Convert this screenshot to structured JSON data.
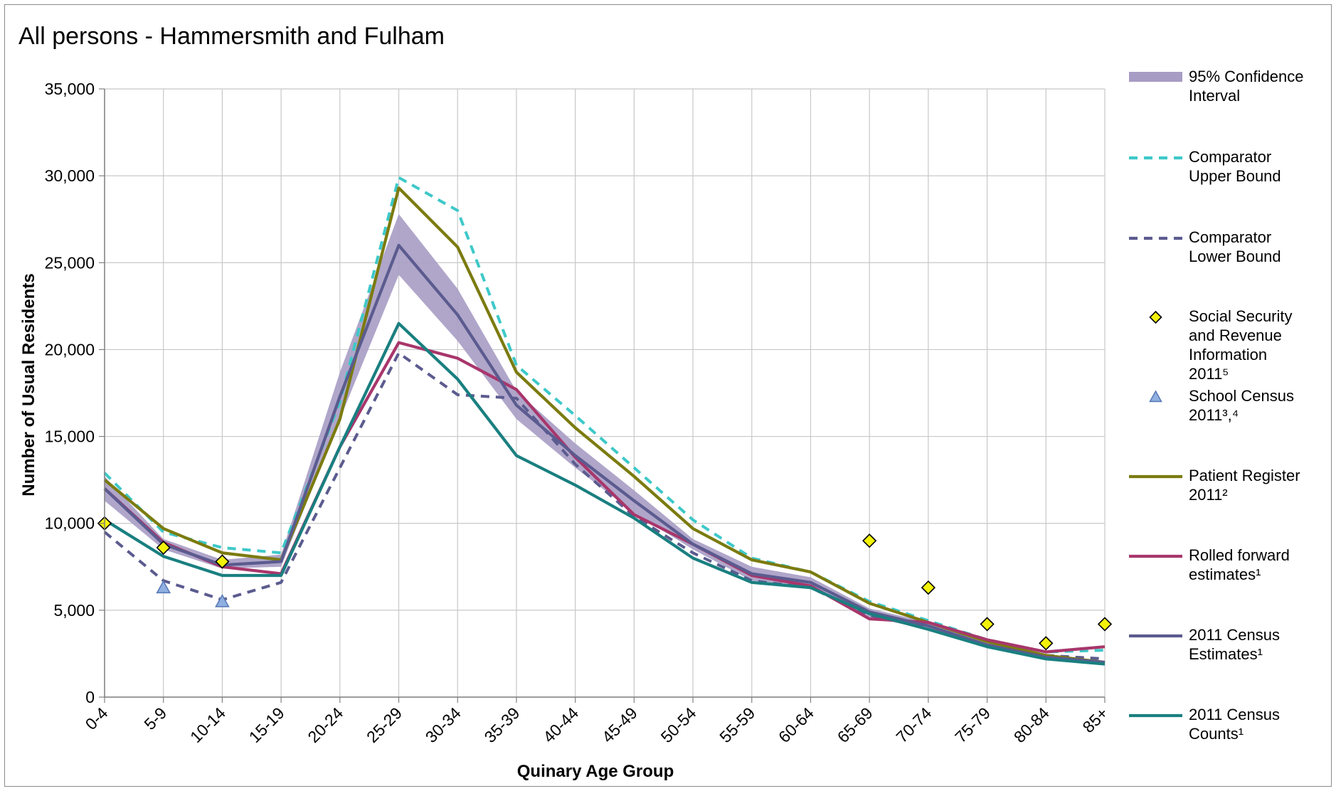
{
  "chart_data": {
    "type": "line",
    "title": "All persons - Hammersmith and Fulham",
    "xlabel": "Quinary Age Group",
    "ylabel": "Number of Usual Residents",
    "ylim": [
      0,
      35000
    ],
    "yticks": [
      0,
      5000,
      10000,
      15000,
      20000,
      25000,
      30000,
      35000
    ],
    "ytick_labels": [
      "0",
      "5,000",
      "10,000",
      "15,000",
      "20,000",
      "25,000",
      "30,000",
      "35,000"
    ],
    "grid": true,
    "legend_position": "right",
    "categories": [
      "0-4",
      "5-9",
      "10-14",
      "15-19",
      "20-24",
      "25-29",
      "30-34",
      "35-39",
      "40-44",
      "45-49",
      "50-54",
      "55-59",
      "60-64",
      "65-69",
      "70-74",
      "75-79",
      "80-84",
      "85+"
    ],
    "confidence_interval": {
      "name": "95% Confidence Interval",
      "color": "#a79cc4",
      "lower": [
        11300,
        8500,
        7400,
        7500,
        16000,
        24300,
        20500,
        16000,
        13200,
        10600,
        8500,
        6700,
        6300,
        4600,
        3900,
        2900,
        2200,
        1850
      ],
      "upper": [
        12700,
        9100,
        7900,
        8200,
        18700,
        27800,
        23500,
        17600,
        14600,
        11900,
        9100,
        7500,
        6900,
        5100,
        4300,
        3200,
        2400,
        2100
      ]
    },
    "series": [
      {
        "name": "Comparator Upper Bound",
        "style": "dashed",
        "color": "#3ec8c8",
        "values": [
          12900,
          9500,
          8600,
          8300,
          17000,
          29900,
          28000,
          19100,
          16200,
          13200,
          10200,
          8000,
          7200,
          5500,
          4400,
          3300,
          2600,
          2700
        ]
      },
      {
        "name": "Comparator Lower Bound",
        "style": "dashed",
        "color": "#5b5b8f",
        "values": [
          9500,
          6700,
          5600,
          6600,
          13200,
          19800,
          17400,
          17200,
          13400,
          10400,
          8300,
          6700,
          6300,
          4700,
          4100,
          3000,
          2400,
          2200
        ]
      },
      {
        "name": "Patient Register 2011²",
        "style": "solid",
        "color": "#7b7b10",
        "values": [
          12500,
          9700,
          8300,
          7900,
          16000,
          29300,
          25900,
          18700,
          15500,
          12700,
          9700,
          7900,
          7200,
          5400,
          4300,
          3200,
          2400,
          2000
        ]
      },
      {
        "name": "Rolled forward estimates¹",
        "style": "solid",
        "color": "#a8366b",
        "values": [
          12000,
          8900,
          7500,
          7100,
          14400,
          20400,
          19500,
          17700,
          13800,
          10500,
          8800,
          7000,
          6400,
          4500,
          4300,
          3300,
          2600,
          2900
        ]
      },
      {
        "name": "2011 Census Estimates¹",
        "style": "solid",
        "color": "#5b5b8f",
        "values": [
          12000,
          8800,
          7600,
          7800,
          17300,
          26000,
          22000,
          16800,
          13900,
          11300,
          8800,
          7100,
          6600,
          4900,
          4100,
          3000,
          2300,
          2000
        ]
      },
      {
        "name": "2011 Census Counts¹",
        "style": "solid",
        "color": "#1a7f80",
        "values": [
          10200,
          8100,
          7000,
          7000,
          14400,
          21500,
          18300,
          13900,
          12200,
          10300,
          8000,
          6600,
          6300,
          4800,
          3900,
          2900,
          2200,
          1900
        ]
      }
    ],
    "markers": [
      {
        "name": "Social Security and Revenue Information 2011⁵",
        "shape": "diamond",
        "color": "#f2f20a",
        "points": [
          {
            "x": "0-4",
            "y": 10000
          },
          {
            "x": "5-9",
            "y": 8600
          },
          {
            "x": "10-14",
            "y": 7800
          },
          {
            "x": "65-69",
            "y": 9000
          },
          {
            "x": "70-74",
            "y": 6300
          },
          {
            "x": "75-79",
            "y": 4200
          },
          {
            "x": "80-84",
            "y": 3100
          },
          {
            "x": "85+",
            "y": 4200
          }
        ]
      },
      {
        "name": "School Census 2011³,⁴",
        "shape": "triangle",
        "color": "#8fb0e0",
        "points": [
          {
            "x": "5-9",
            "y": 6300
          },
          {
            "x": "10-14",
            "y": 5500
          }
        ]
      }
    ],
    "legend": [
      {
        "key": "ci",
        "lines": [
          "95% Confidence",
          "Interval"
        ]
      },
      {
        "key": "s0",
        "lines": [
          "Comparator",
          "Upper Bound"
        ]
      },
      {
        "key": "s1",
        "lines": [
          "Comparator",
          "Lower Bound"
        ]
      },
      {
        "key": "m0",
        "lines": [
          "Social Security",
          "and Revenue",
          "Information",
          "2011⁵"
        ]
      },
      {
        "key": "m1",
        "lines": [
          "School Census",
          "2011³,⁴"
        ]
      },
      {
        "key": "s2",
        "lines": [
          "Patient Register",
          "2011²"
        ]
      },
      {
        "key": "s3",
        "lines": [
          "Rolled forward",
          "estimates¹"
        ]
      },
      {
        "key": "s4",
        "lines": [
          "2011 Census",
          "Estimates¹"
        ]
      },
      {
        "key": "s5",
        "lines": [
          "2011 Census",
          "Counts¹"
        ]
      }
    ]
  }
}
